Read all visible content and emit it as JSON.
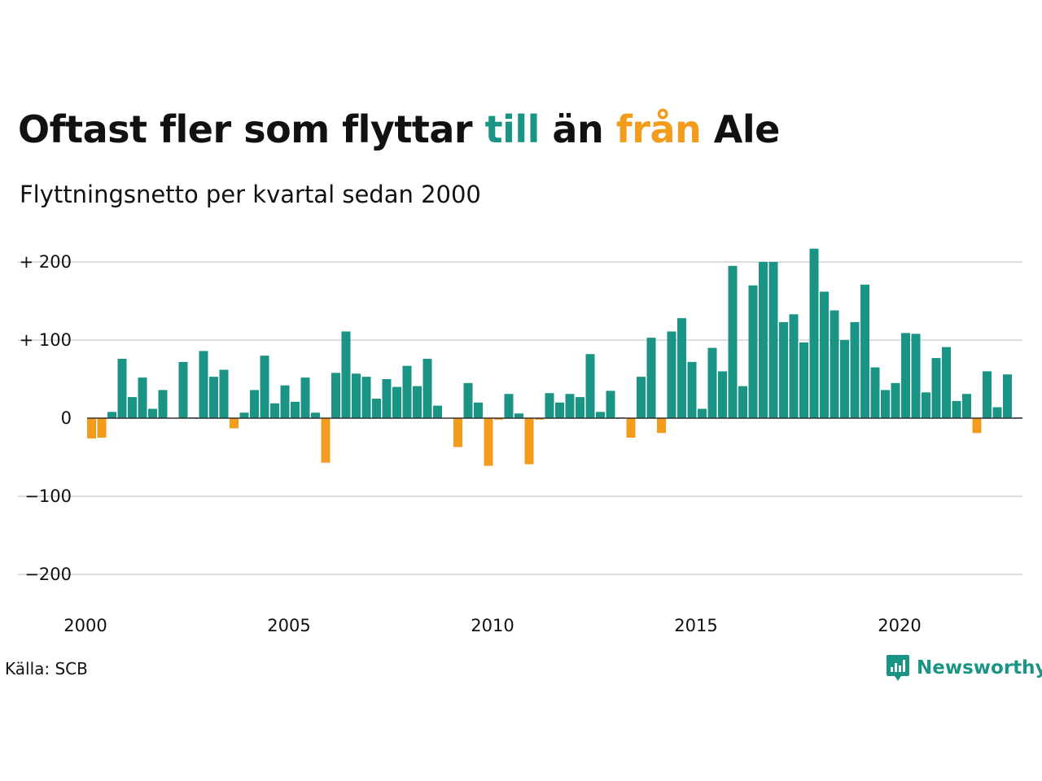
{
  "title": {
    "part1": "Oftast fler som flyttar ",
    "till": "till",
    "part2": " än ",
    "fran": "från",
    "part3": " Ale"
  },
  "subtitle": "Flyttningsnetto per kvartal sedan 2000",
  "source": "Källa: SCB",
  "logo": {
    "text": "Newsworthy",
    "icon": "newsworthy-chart-bubble-icon"
  },
  "colors": {
    "positive": "#1a9485",
    "negative": "#f39c1c",
    "grid": "#dddddd",
    "baseline": "#333333",
    "text": "#111111"
  },
  "chart_data": {
    "type": "bar",
    "title": "Oftast fler som flyttar till än från Ale",
    "subtitle": "Flyttningsnetto per kvartal sedan 2000",
    "xlabel": "",
    "ylabel": "",
    "x_start": 2000,
    "x_step": 0.25,
    "xlim": [
      2000,
      2023
    ],
    "ylim": [
      -210,
      215
    ],
    "grid": true,
    "y_ticks": [
      {
        "value": 200,
        "label": "+ 200"
      },
      {
        "value": 100,
        "label": "+ 100"
      },
      {
        "value": 0,
        "label": "0"
      },
      {
        "value": -100,
        "label": "−100"
      },
      {
        "value": -200,
        "label": "−200"
      }
    ],
    "x_ticks": [
      {
        "value": 2000,
        "label": "2000"
      },
      {
        "value": 2005,
        "label": "2005"
      },
      {
        "value": 2010,
        "label": "2010"
      },
      {
        "value": 2015,
        "label": "2015"
      },
      {
        "value": 2020,
        "label": "2020"
      }
    ],
    "values": [
      -26,
      -25,
      8,
      76,
      27,
      52,
      12,
      36,
      0,
      72,
      1,
      86,
      53,
      62,
      -13,
      7,
      36,
      80,
      19,
      42,
      21,
      52,
      7,
      -57,
      58,
      111,
      57,
      53,
      25,
      50,
      40,
      67,
      41,
      76,
      16,
      0,
      -37,
      45,
      20,
      -61,
      -2,
      31,
      6,
      -59,
      -2,
      32,
      20,
      31,
      27,
      82,
      8,
      35,
      1,
      -25,
      53,
      103,
      -19,
      111,
      128,
      72,
      12,
      90,
      60,
      195,
      41,
      170,
      200,
      200,
      123,
      133,
      97,
      217,
      162,
      138,
      100,
      123,
      171,
      65,
      36,
      45,
      109,
      108,
      33,
      77,
      91,
      22,
      31,
      -19,
      60,
      14,
      56,
      1
    ]
  }
}
